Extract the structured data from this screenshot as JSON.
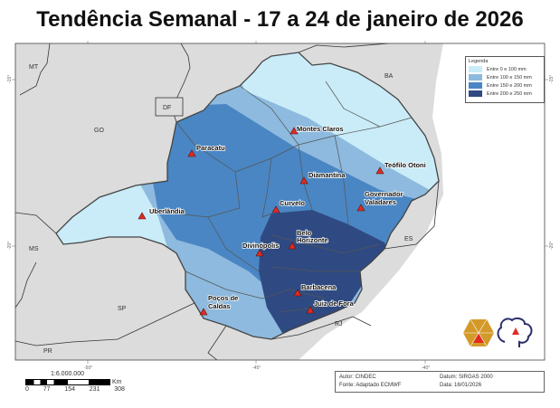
{
  "title": "Tendência Semanal - 17 a 24 de janeiro de 2026",
  "legend": {
    "title": "Legenda",
    "items": [
      {
        "label": "Entre 0 e 100 mm",
        "color": "#c9ecf8"
      },
      {
        "label": "Entre 100 e 150 mm",
        "color": "#8dbade"
      },
      {
        "label": "Entre 150 e 200 mm",
        "color": "#4a86c3"
      },
      {
        "label": "Entre 200 e 250 mm",
        "color": "#2f4a82"
      }
    ]
  },
  "states": {
    "mt": "MT",
    "go": "GO",
    "df": "DF",
    "ba": "BA",
    "ms": "MS",
    "es": "ES",
    "sp": "SP",
    "rj": "RJ",
    "pr": "PR"
  },
  "cities": {
    "paracatu": "Paracatu",
    "montes_claros": "Montes Claros",
    "diamantina": "Diamantina",
    "teofilo_otoni": "Teófilo Otoni",
    "governador_valadares_1": "Governador",
    "governador_valadares_2": "Valadares",
    "uberlandia": "Uberlândia",
    "curvelo": "Curvelo",
    "belo_horizonte_1": "Belo",
    "belo_horizonte_2": "Horizonte",
    "divinopolis": "Divinópolis",
    "barbacena": "Barbacena",
    "juiz_de_fora": "Juiz de Fora",
    "pocos_de_caldas_1": "Poços de",
    "pocos_de_caldas_2": "Caldas"
  },
  "ticks": {
    "lon": [
      "-50°",
      "-45°",
      "-40°"
    ],
    "lat": [
      "-15°",
      "-20°"
    ]
  },
  "scale": {
    "ratio": "1:6.000.000",
    "unit": "Km",
    "labels": [
      "0",
      "77",
      "154",
      "231",
      "308"
    ]
  },
  "credits": {
    "author": "Autor: CINDEC",
    "datum": "Datum: SIRGAS 2000",
    "source": "Fonte: Adaptado ECMWF",
    "date": "Data: 16/01/2026"
  },
  "logos": {
    "civil_defense": "DEFESA CIVIL MINAS GERAIS"
  }
}
